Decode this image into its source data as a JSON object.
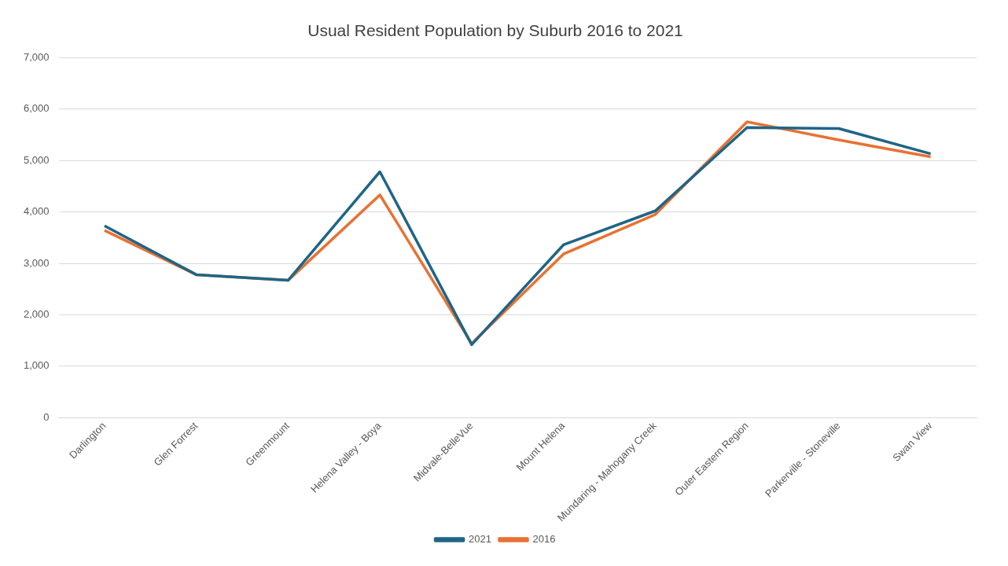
{
  "chart_data": {
    "type": "line",
    "title": "Usual Resident Population by Suburb 2016 to 2021",
    "categories": [
      "Darlington",
      "Glen Forrest",
      "Greenmount",
      "Helena Valley - Boya",
      "Midvale-BelleVue",
      "Mount Helena",
      "Mundaring - Mahogany Creek",
      "Outer Eastern Region",
      "Parkerville - Stoneville",
      "Swan View"
    ],
    "series": [
      {
        "name": "2021",
        "color": "#1f6587",
        "values": [
          3730,
          2780,
          2670,
          4780,
          1420,
          3360,
          4020,
          5640,
          5620,
          5130
        ]
      },
      {
        "name": "2016",
        "color": "#e97132",
        "values": [
          3640,
          2780,
          2670,
          4330,
          1440,
          3180,
          3950,
          5750,
          5400,
          5070
        ]
      }
    ],
    "ylim": [
      0,
      7000
    ],
    "yticks": [
      {
        "value": 0,
        "label": "0"
      },
      {
        "value": 1000,
        "label": "1,000"
      },
      {
        "value": 2000,
        "label": "2,000"
      },
      {
        "value": 3000,
        "label": "3,000"
      },
      {
        "value": 4000,
        "label": "4,000"
      },
      {
        "value": 5000,
        "label": "5,000"
      },
      {
        "value": 6000,
        "label": "6,000"
      },
      {
        "value": 7000,
        "label": "7,000"
      }
    ],
    "grid": "y",
    "legend": "bottom",
    "marker": "none",
    "line_style": "solid"
  }
}
